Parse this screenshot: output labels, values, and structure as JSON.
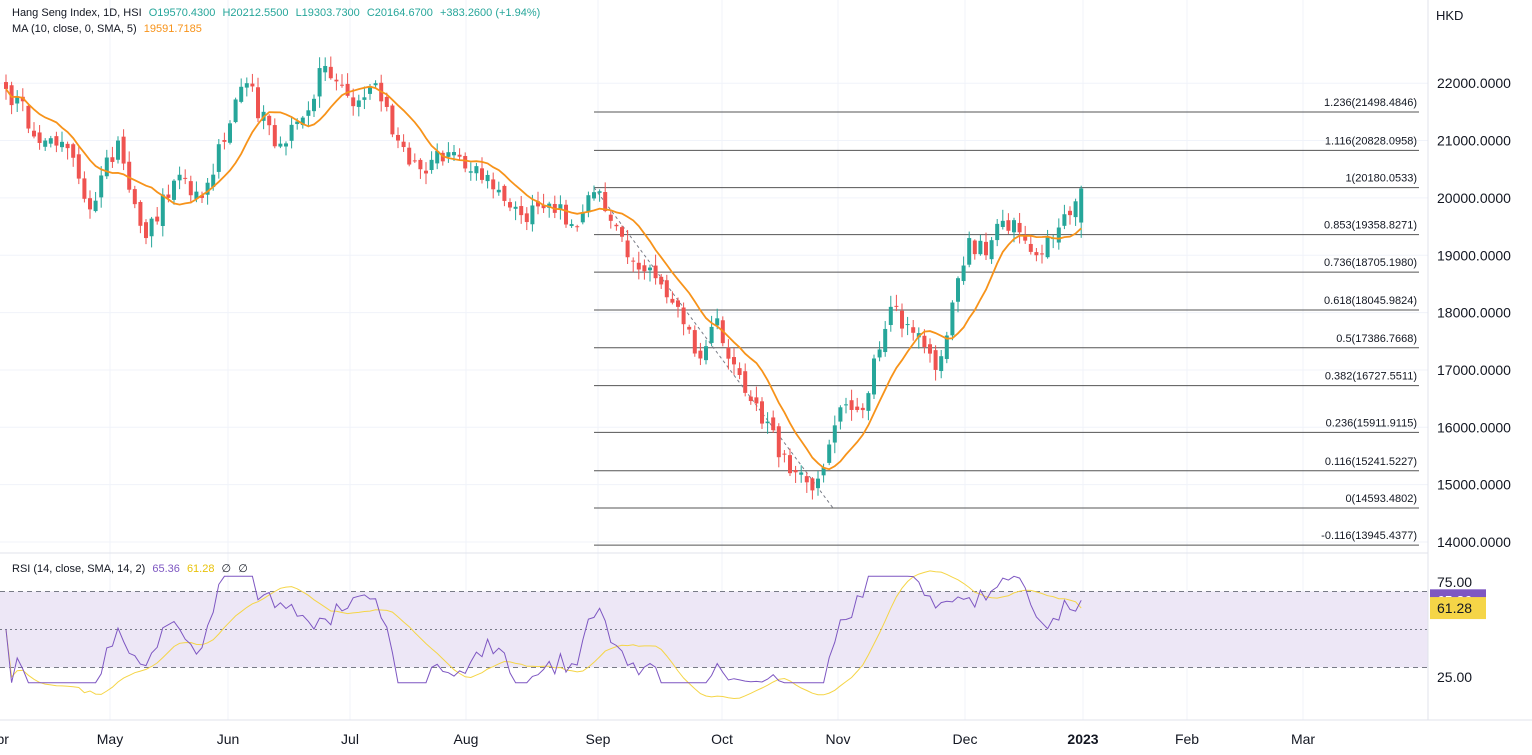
{
  "header": {
    "symbol": "Hang Seng Index, 1D, HSI",
    "open": "O19570.4300",
    "high": "H20212.5500",
    "low": "L19303.7300",
    "close": "C20164.6700",
    "change": "+383.2600 (+1.94%)",
    "ma_label": "MA (10, close, 0, SMA, 5)",
    "ma_value": "19591.7185"
  },
  "rsi_header": {
    "label": "RSI (14, close, SMA, 14, 2)",
    "rsi_value": "65.36",
    "sma_value": "61.28",
    "extra1": "∅",
    "extra2": "∅"
  },
  "colors": {
    "up": "#26a69a",
    "down": "#ef5350",
    "ma": "#f7931a",
    "rsi": "#7e57c2",
    "rsi_sma": "#f5d547",
    "rsi_band": "#ede7f6",
    "grid": "#f0f3fa",
    "fib": "#555555",
    "text": "#131722"
  },
  "chart_data": [
    {
      "type": "candlestick",
      "title": "Hang Seng Index, 1D, HSI",
      "currency": "HKD",
      "y_ticks": [
        "14000.0000",
        "15000.0000",
        "16000.0000",
        "17000.0000",
        "18000.0000",
        "19000.0000",
        "20000.0000",
        "21000.0000",
        "22000.0000"
      ],
      "ylim": [
        13800,
        22900
      ],
      "x_ticks": [
        "Apr",
        "May",
        "Jun",
        "Jul",
        "Aug",
        "Sep",
        "Oct",
        "Nov",
        "Dec",
        "2023",
        "Feb",
        "Mar"
      ],
      "anchors": [
        {
          "d": 0,
          "v": 21900
        },
        {
          "d": 7,
          "v": 21000
        },
        {
          "d": 12,
          "v": 20700
        },
        {
          "d": 15,
          "v": 19800
        },
        {
          "d": 20,
          "v": 21000
        },
        {
          "d": 25,
          "v": 19300
        },
        {
          "d": 30,
          "v": 20300
        },
        {
          "d": 35,
          "v": 20000
        },
        {
          "d": 40,
          "v": 21300
        },
        {
          "d": 43,
          "v": 22000
        },
        {
          "d": 48,
          "v": 20900
        },
        {
          "d": 53,
          "v": 21400
        },
        {
          "d": 57,
          "v": 22300
        },
        {
          "d": 62,
          "v": 21600
        },
        {
          "d": 66,
          "v": 22000
        },
        {
          "d": 70,
          "v": 21000
        },
        {
          "d": 74,
          "v": 20500
        },
        {
          "d": 80,
          "v": 20800
        },
        {
          "d": 86,
          "v": 20400
        },
        {
          "d": 92,
          "v": 19700
        },
        {
          "d": 97,
          "v": 19900
        },
        {
          "d": 102,
          "v": 19500
        },
        {
          "d": 105,
          "v": 20100
        },
        {
          "d": 108,
          "v": 19600
        },
        {
          "d": 112,
          "v": 18900
        },
        {
          "d": 116,
          "v": 18600
        },
        {
          "d": 120,
          "v": 18100
        },
        {
          "d": 124,
          "v": 17200
        },
        {
          "d": 127,
          "v": 17900
        },
        {
          "d": 132,
          "v": 16600
        },
        {
          "d": 136,
          "v": 16100
        },
        {
          "d": 140,
          "v": 15200
        },
        {
          "d": 144,
          "v": 14900
        },
        {
          "d": 147,
          "v": 15700
        },
        {
          "d": 150,
          "v": 16400
        },
        {
          "d": 153,
          "v": 16300
        },
        {
          "d": 155,
          "v": 17200
        },
        {
          "d": 158,
          "v": 18100
        },
        {
          "d": 161,
          "v": 17800
        },
        {
          "d": 164,
          "v": 17400
        },
        {
          "d": 166,
          "v": 17000
        },
        {
          "d": 168,
          "v": 17600
        },
        {
          "d": 170,
          "v": 18600
        },
        {
          "d": 172,
          "v": 19300
        },
        {
          "d": 175,
          "v": 19000
        },
        {
          "d": 178,
          "v": 19600
        },
        {
          "d": 181,
          "v": 19400
        },
        {
          "d": 184,
          "v": 19000
        },
        {
          "d": 187,
          "v": 19300
        },
        {
          "d": 190,
          "v": 19700
        },
        {
          "d": 192,
          "v": 20165
        }
      ],
      "ma": {
        "name": "MA (10, close, 0, SMA, 5)",
        "last": 19591.7185
      },
      "fibonacci": {
        "start": {
          "date": "Sep",
          "price": 20180.0533
        },
        "end": {
          "date": "Oct/Nov",
          "price": 14593.4802
        },
        "levels": [
          {
            "ratio": "1.236",
            "price": 21498.4846,
            "label": "1.236(21498.4846)"
          },
          {
            "ratio": "1.116",
            "price": 20828.0958,
            "label": "1.116(20828.0958)"
          },
          {
            "ratio": "1",
            "price": 20180.0533,
            "label": "1(20180.0533)"
          },
          {
            "ratio": "0.853",
            "price": 19358.8271,
            "label": "0.853(19358.8271)"
          },
          {
            "ratio": "0.736",
            "price": 18705.198,
            "label": "0.736(18705.1980)"
          },
          {
            "ratio": "0.618",
            "price": 18045.9824,
            "label": "0.618(18045.9824)"
          },
          {
            "ratio": "0.5",
            "price": 17386.7668,
            "label": "0.5(17386.7668)"
          },
          {
            "ratio": "0.382",
            "price": 16727.5511,
            "label": "0.382(16727.5511)"
          },
          {
            "ratio": "0.236",
            "price": 15911.9115,
            "label": "0.236(15911.9115)"
          },
          {
            "ratio": "0.116",
            "price": 15241.5227,
            "label": "0.116(15241.5227)"
          },
          {
            "ratio": "0",
            "price": 14593.4802,
            "label": "0(14593.4802)"
          },
          {
            "ratio": "-0.116",
            "price": 13945.4377,
            "label": "-0.116(13945.4377)"
          }
        ]
      },
      "last_values": {
        "open": 19570.43,
        "high": 20212.55,
        "low": 19303.73,
        "close": 20164.67
      }
    },
    {
      "type": "line",
      "title": "RSI (14, close, SMA, 14, 2)",
      "y_ticks": [
        "25.00",
        "75.00"
      ],
      "ylim": [
        20,
        80
      ],
      "bands": {
        "upper": 70,
        "middle": 50,
        "lower": 30
      },
      "series": [
        {
          "name": "RSI",
          "last": 65.36
        },
        {
          "name": "SMA",
          "last": 61.28
        }
      ]
    }
  ]
}
